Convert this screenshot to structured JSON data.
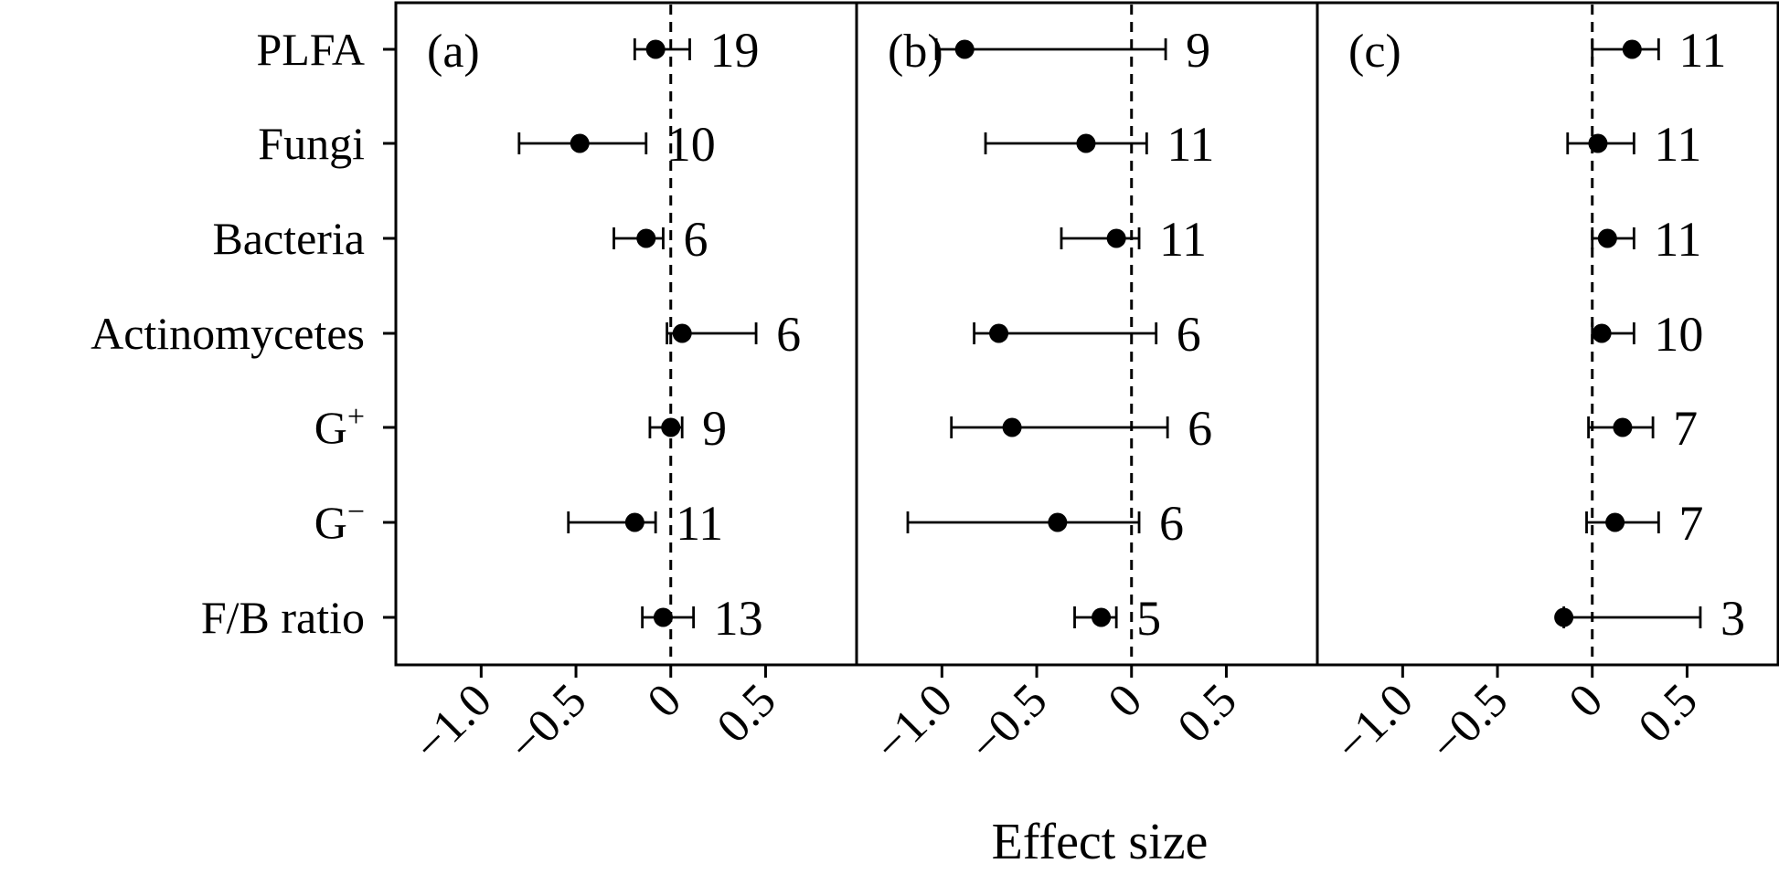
{
  "chart_data": {
    "type": "forest",
    "xlabel": "Effect size",
    "categories": [
      "PLFA",
      "Fungi",
      "Bacteria",
      "Actinomycetes",
      "G",
      "G",
      "F/B ratio"
    ],
    "category_superscripts": [
      "",
      "",
      "",
      "",
      "+",
      "−",
      ""
    ],
    "xticks": [
      -1.0,
      -0.5,
      0,
      0.5
    ],
    "xtick_labels": [
      "−1.0",
      "−0.5",
      "0",
      "0.5"
    ],
    "xlim": [
      -1.45,
      0.98
    ],
    "reference_line": 0,
    "panels": [
      {
        "label": "(a)",
        "points": [
          {
            "mean": -0.08,
            "low": -0.19,
            "high": 0.1,
            "n": "19"
          },
          {
            "mean": -0.48,
            "low": -0.8,
            "high": -0.13,
            "n": "10"
          },
          {
            "mean": -0.13,
            "low": -0.3,
            "high": -0.04,
            "n": "6"
          },
          {
            "mean": 0.06,
            "low": -0.02,
            "high": 0.45,
            "n": "6"
          },
          {
            "mean": 0.0,
            "low": -0.11,
            "high": 0.06,
            "n": "9"
          },
          {
            "mean": -0.19,
            "low": -0.54,
            "high": -0.08,
            "n": "11"
          },
          {
            "mean": -0.04,
            "low": -0.15,
            "high": 0.12,
            "n": "13"
          }
        ]
      },
      {
        "label": "(b)",
        "points": [
          {
            "mean": -0.88,
            "low": -1.03,
            "high": 0.18,
            "n": "9"
          },
          {
            "mean": -0.24,
            "low": -0.77,
            "high": 0.08,
            "n": "11"
          },
          {
            "mean": -0.08,
            "low": -0.37,
            "high": 0.04,
            "n": "11"
          },
          {
            "mean": -0.7,
            "low": -0.83,
            "high": 0.13,
            "n": "6"
          },
          {
            "mean": -0.63,
            "low": -0.95,
            "high": 0.19,
            "n": "6"
          },
          {
            "mean": -0.39,
            "low": -1.18,
            "high": 0.04,
            "n": "6"
          },
          {
            "mean": -0.16,
            "low": -0.3,
            "high": -0.08,
            "n": "5"
          }
        ]
      },
      {
        "label": "(c)",
        "points": [
          {
            "mean": 0.21,
            "low": 0.0,
            "high": 0.35,
            "n": "11"
          },
          {
            "mean": 0.03,
            "low": -0.13,
            "high": 0.22,
            "n": "11"
          },
          {
            "mean": 0.08,
            "low": 0.0,
            "high": 0.22,
            "n": "11"
          },
          {
            "mean": 0.05,
            "low": 0.0,
            "high": 0.22,
            "n": "10"
          },
          {
            "mean": 0.16,
            "low": -0.02,
            "high": 0.32,
            "n": "7"
          },
          {
            "mean": 0.12,
            "low": -0.03,
            "high": 0.35,
            "n": "7"
          },
          {
            "mean": -0.15,
            "low": -0.15,
            "high": 0.57,
            "n": "3"
          }
        ]
      }
    ]
  }
}
